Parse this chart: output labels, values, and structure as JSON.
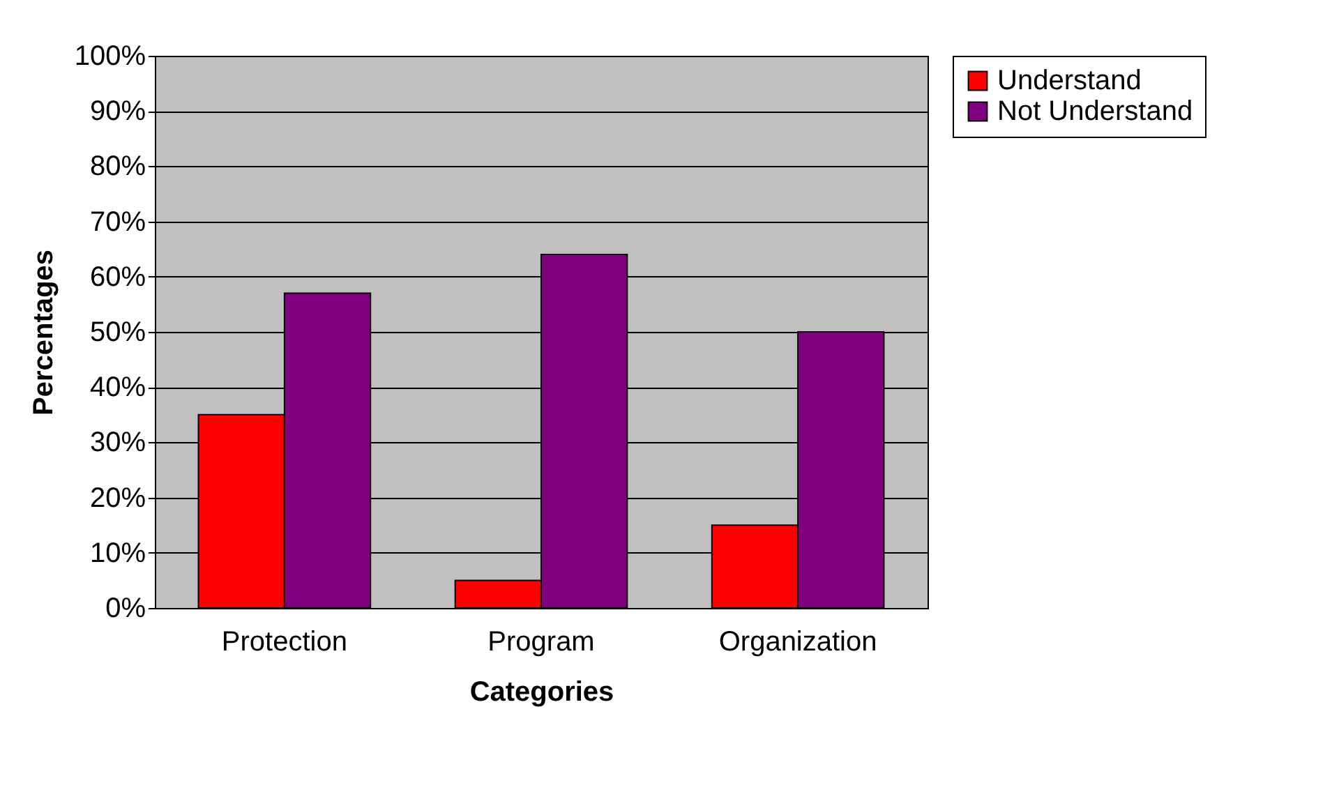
{
  "chart_data": {
    "type": "bar",
    "xlabel": "Categories",
    "ylabel": "Percentages",
    "categories": [
      "Protection",
      "Program",
      "Organization"
    ],
    "series": [
      {
        "name": "Understand",
        "color": "#ff0000",
        "values": [
          35,
          5,
          15
        ]
      },
      {
        "name": "Not Understand",
        "color": "#800080",
        "values": [
          57,
          64,
          50
        ]
      }
    ],
    "ylim": [
      0,
      100
    ],
    "yticks": [
      {
        "value": 0,
        "label": "0%"
      },
      {
        "value": 10,
        "label": "10%"
      },
      {
        "value": 20,
        "label": "20%"
      },
      {
        "value": 30,
        "label": "30%"
      },
      {
        "value": 40,
        "label": "40%"
      },
      {
        "value": 50,
        "label": "50%"
      },
      {
        "value": 60,
        "label": "60%"
      },
      {
        "value": 70,
        "label": "70%"
      },
      {
        "value": 80,
        "label": "80%"
      },
      {
        "value": 90,
        "label": "90%"
      },
      {
        "value": 100,
        "label": "100%"
      }
    ],
    "grid": "y",
    "legend": "right"
  }
}
